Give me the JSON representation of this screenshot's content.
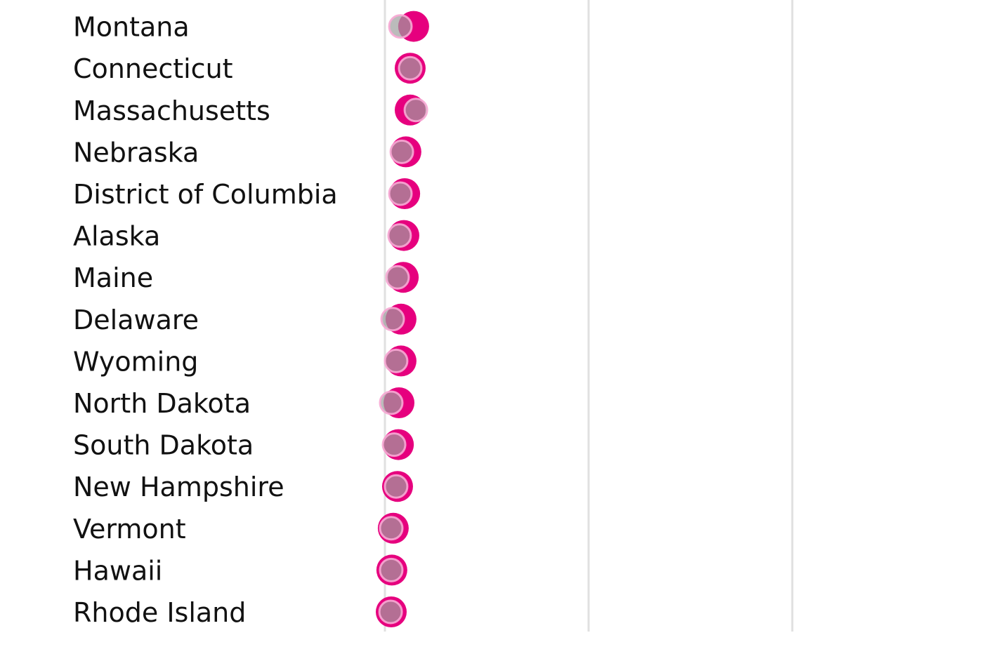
{
  "chart_data": {
    "type": "dot",
    "title": "",
    "xlabel": "",
    "ylabel": "",
    "xlim": [
      0,
      2.95
    ],
    "gridlines_x": [
      0,
      1,
      2
    ],
    "grid": true,
    "colors": {
      "series_a": "#e6007e",
      "series_b": "#9e9e9e",
      "series_b_ring": "#f7a8d4",
      "grid": "#e0e0e0"
    },
    "categories": [
      "",
      "Montana",
      "Connecticut",
      "Massachusetts",
      "Nebraska",
      "District of Columbia",
      "Alaska",
      "Maine",
      "Delaware",
      "Wyoming",
      "North Dakota",
      "South Dakota",
      "New Hampshire",
      "Vermont",
      "Hawaii",
      "Rhode Island"
    ],
    "series": [
      {
        "values": [
          0.155,
          0.141,
          0.124,
          0.124,
          0.103,
          0.097,
          0.093,
          0.09,
          0.079,
          0.079,
          0.069,
          0.066,
          0.062,
          0.041,
          0.034,
          0.031
        ]
      },
      {
        "values": [
          null,
          0.076,
          0.124,
          0.152,
          0.083,
          0.076,
          0.072,
          0.062,
          0.038,
          0.055,
          0.031,
          0.045,
          0.055,
          0.031,
          0.031,
          0.028
        ]
      }
    ]
  }
}
